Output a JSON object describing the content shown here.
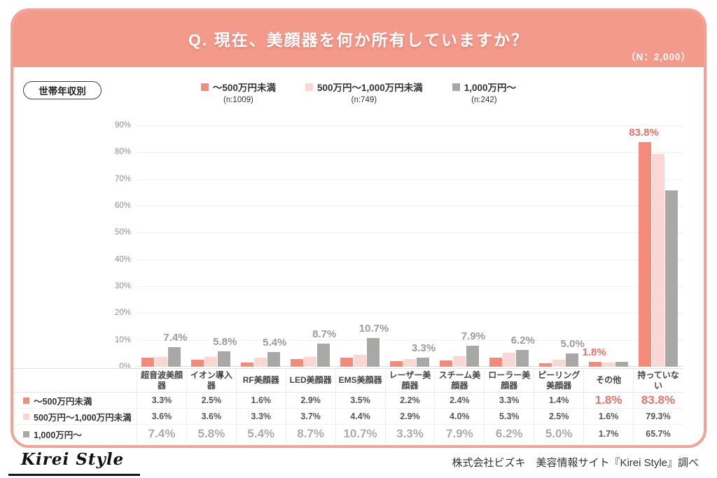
{
  "header": {
    "title": "Q. 現在、美顔器を何か所有していますか？",
    "sample": "（N：2,000）"
  },
  "badge": {
    "label": "世帯年収別"
  },
  "colors": {
    "band": "#F49A8B",
    "card_border": "#F1A396",
    "series": [
      "#F5897A",
      "#FAD7D2",
      "#A9A8A7"
    ],
    "emphasis_salmon": "#E3746A",
    "emphasis_gray": "#ABABAB"
  },
  "chart_data": {
    "type": "bar",
    "title": "Q. 現在、美顔器を何か所有していますか？",
    "sample_size": "（N：2,000）",
    "segment_label": "世帯年収別",
    "categories": [
      "超音波美顔器",
      "イオン導入器",
      "RF美顔器",
      "LED美顔器",
      "EMS美顔器",
      "レーザー美顔器",
      "スチーム美顔器",
      "ローラー美顔器",
      "ピーリング美顔器",
      "その他",
      "持っていない"
    ],
    "series": [
      {
        "name": "～500万円未満",
        "n": "(n:1009)",
        "color": "#F5897A",
        "values": [
          3.3,
          2.5,
          1.6,
          2.9,
          3.5,
          2.2,
          2.4,
          3.3,
          1.4,
          1.8,
          83.8
        ]
      },
      {
        "name": "500万円～1,000万円未満",
        "n": "(n:749)",
        "color": "#FAD7D2",
        "values": [
          3.6,
          3.6,
          3.3,
          3.7,
          4.4,
          2.9,
          4.0,
          5.3,
          2.5,
          1.6,
          79.3
        ]
      },
      {
        "name": "1,000万円～",
        "n": "(n:242)",
        "color": "#A9A8A7",
        "values": [
          7.4,
          5.8,
          5.4,
          8.7,
          10.7,
          3.3,
          7.9,
          6.2,
          5.0,
          1.7,
          65.7
        ]
      }
    ],
    "ylim": [
      0,
      90
    ],
    "ytick_step": 10,
    "yticks": [
      "0%",
      "10%",
      "20%",
      "30%",
      "40%",
      "50%",
      "60%",
      "70%",
      "80%",
      "90%"
    ],
    "grid": true,
    "legend_position": "top",
    "annotations": [
      {
        "category_index": 0,
        "series_index": 2,
        "text": "7.4%",
        "color": "#9B9B9B"
      },
      {
        "category_index": 1,
        "series_index": 2,
        "text": "5.8%",
        "color": "#9B9B9B"
      },
      {
        "category_index": 2,
        "series_index": 2,
        "text": "5.4%",
        "color": "#9B9B9B"
      },
      {
        "category_index": 3,
        "series_index": 2,
        "text": "8.7%",
        "color": "#9B9B9B"
      },
      {
        "category_index": 4,
        "series_index": 2,
        "text": "10.7%",
        "color": "#9B9B9B"
      },
      {
        "category_index": 5,
        "series_index": 2,
        "text": "3.3%",
        "color": "#9B9B9B"
      },
      {
        "category_index": 6,
        "series_index": 2,
        "text": "7.9%",
        "color": "#9B9B9B"
      },
      {
        "category_index": 7,
        "series_index": 2,
        "text": "6.2%",
        "color": "#9B9B9B"
      },
      {
        "category_index": 8,
        "series_index": 2,
        "text": "5.0%",
        "color": "#9B9B9B"
      },
      {
        "category_index": 9,
        "series_index": 0,
        "text": "1.8%",
        "color": "#E3746A"
      },
      {
        "category_index": 10,
        "series_index": 0,
        "text": "83.8%",
        "color": "#E3746A"
      }
    ]
  },
  "table": {
    "emphasis": [
      {
        "row": 0,
        "cols": [
          9,
          10
        ],
        "style": "big-salmon"
      },
      {
        "row": 2,
        "cols": [
          0,
          1,
          2,
          3,
          4,
          5,
          6,
          7,
          8
        ],
        "style": "big-gray"
      }
    ]
  },
  "footer": {
    "logo": "Kirei Style",
    "source": "株式会社ビズキ　美容情報サイト『Kirei Style』調べ"
  }
}
